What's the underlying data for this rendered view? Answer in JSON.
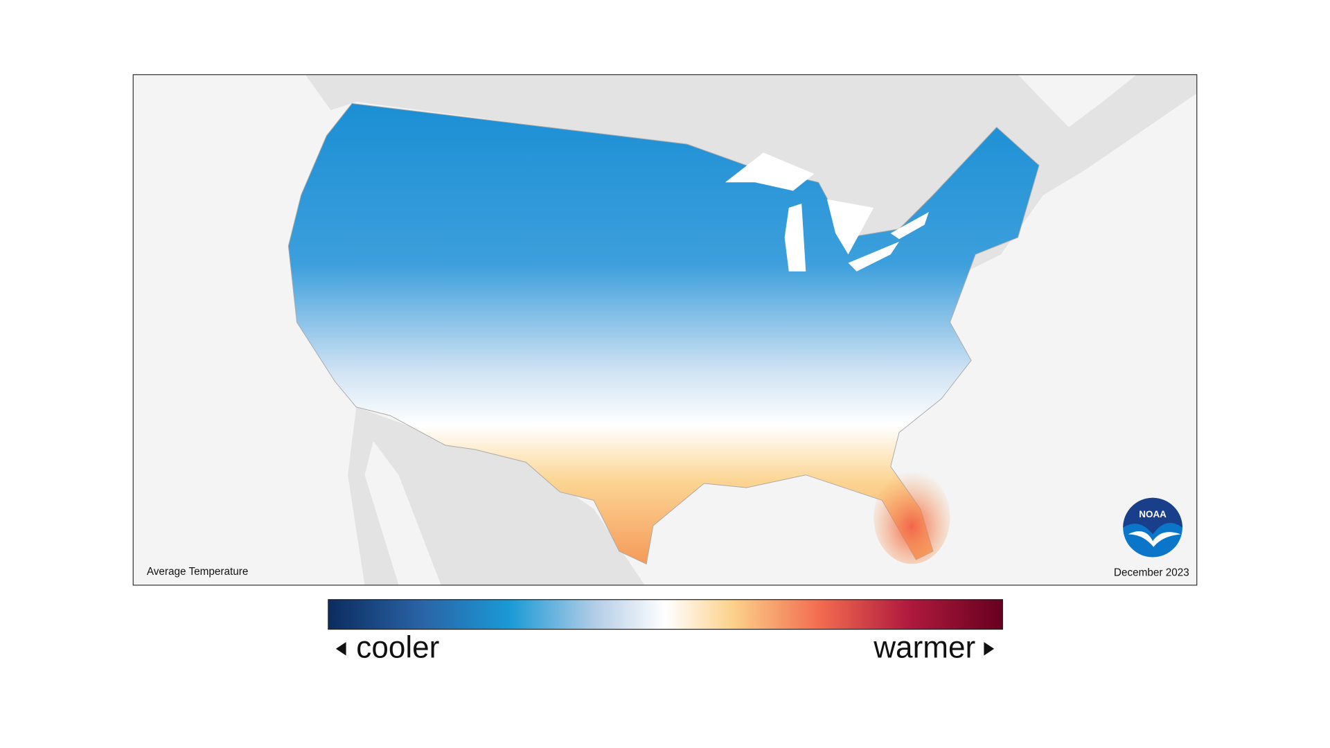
{
  "map": {
    "label": "Average Temperature",
    "date": "December 2023",
    "logo_text": "NOAA"
  },
  "legend": {
    "low_label": "cooler",
    "high_label": "warmer"
  }
}
